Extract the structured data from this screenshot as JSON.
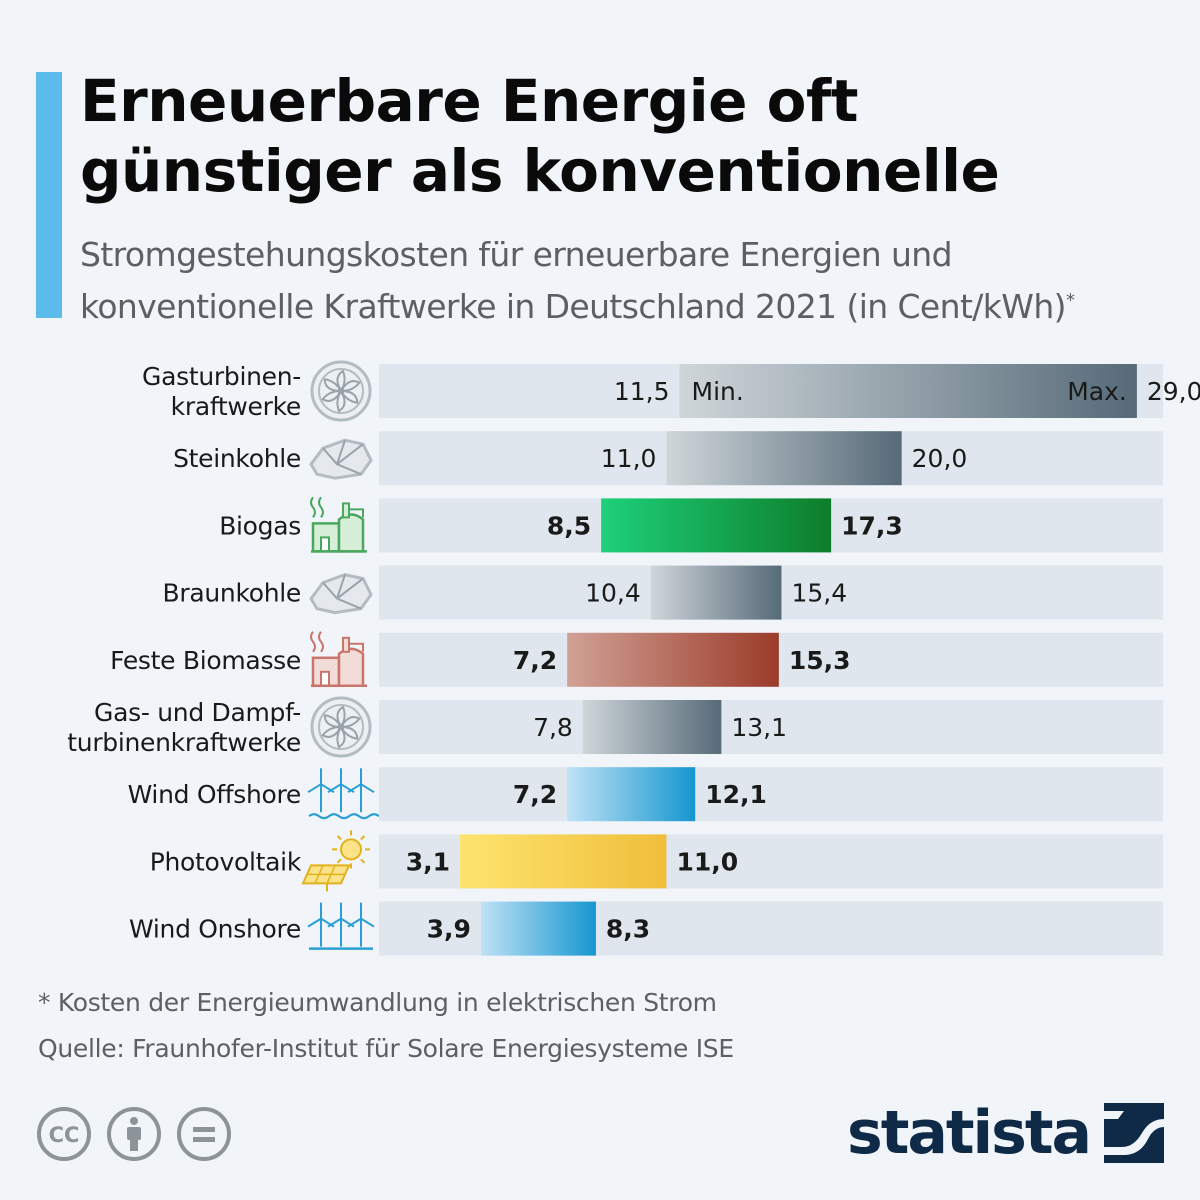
{
  "header": {
    "title": "Erneuerbare Energie oft günstiger als konventionelle",
    "subtitle": "Stromgestehungskosten für erneuerbare Energien und konventionelle Kraftwerke in Deutschland 2021 (in Cent/kWh)",
    "subtitle_mark": "*"
  },
  "colors": {
    "accent": "#5bbcec",
    "track": "#dfe6ee",
    "conventional": [
      "#cfd6da",
      "#566a78"
    ],
    "biogas": [
      "#1ed07a",
      "#0d7d2a"
    ],
    "biomasse": [
      "#d0a196",
      "#9c3b29"
    ],
    "wind": [
      "#bfe2f6",
      "#1596cf"
    ],
    "solar": [
      "#fde46e",
      "#f0be3b"
    ]
  },
  "chart_data": {
    "type": "bar",
    "subtype": "range",
    "unit": "Cent/kWh",
    "xlim": [
      0,
      30
    ],
    "min_label": "Min.",
    "max_label": "Max.",
    "categories": [
      "Gasturbinen-\nkraftwerke",
      "Steinkohle",
      "Biogas",
      "Braunkohle",
      "Feste Biomasse",
      "Gas- und Dampf-\nturbinenkraftwerke",
      "Wind Offshore",
      "Photovoltaik",
      "Wind Onshore"
    ],
    "min": [
      11.5,
      11.0,
      8.5,
      10.4,
      7.2,
      7.8,
      7.2,
      3.1,
      3.9
    ],
    "max": [
      29.0,
      20.0,
      17.3,
      15.4,
      15.3,
      13.1,
      12.1,
      11.0,
      8.3
    ],
    "min_labels": [
      "11,5",
      "11,0",
      "8,5",
      "10,4",
      "7,2",
      "7,8",
      "7,2",
      "3,1",
      "3,9"
    ],
    "max_labels": [
      "29,0",
      "20,0",
      "17,3",
      "15,4",
      "15,3",
      "13,1",
      "12,1",
      "11,0",
      "8,3"
    ],
    "groups": [
      "conventional",
      "conventional",
      "biogas",
      "conventional",
      "biomasse",
      "conventional",
      "wind",
      "solar",
      "wind"
    ],
    "icons": [
      "fan-icon",
      "coal-icon",
      "biogas-plant-icon",
      "coal-icon",
      "biomass-plant-icon",
      "fan-icon",
      "offshore-wind-icon",
      "solar-panel-icon",
      "onshore-wind-icon"
    ],
    "renewable": [
      false,
      false,
      true,
      false,
      true,
      false,
      true,
      true,
      true
    ]
  },
  "footer": {
    "footnote": "* Kosten der Energieumwandlung in elektrischen Strom",
    "source": "Quelle: Fraunhofer-Institut für Solare Energiesysteme ISE",
    "brand": "statista",
    "license_icons": [
      "cc-icon",
      "attribution-icon",
      "no-derivatives-icon"
    ],
    "license_text": "CC"
  }
}
